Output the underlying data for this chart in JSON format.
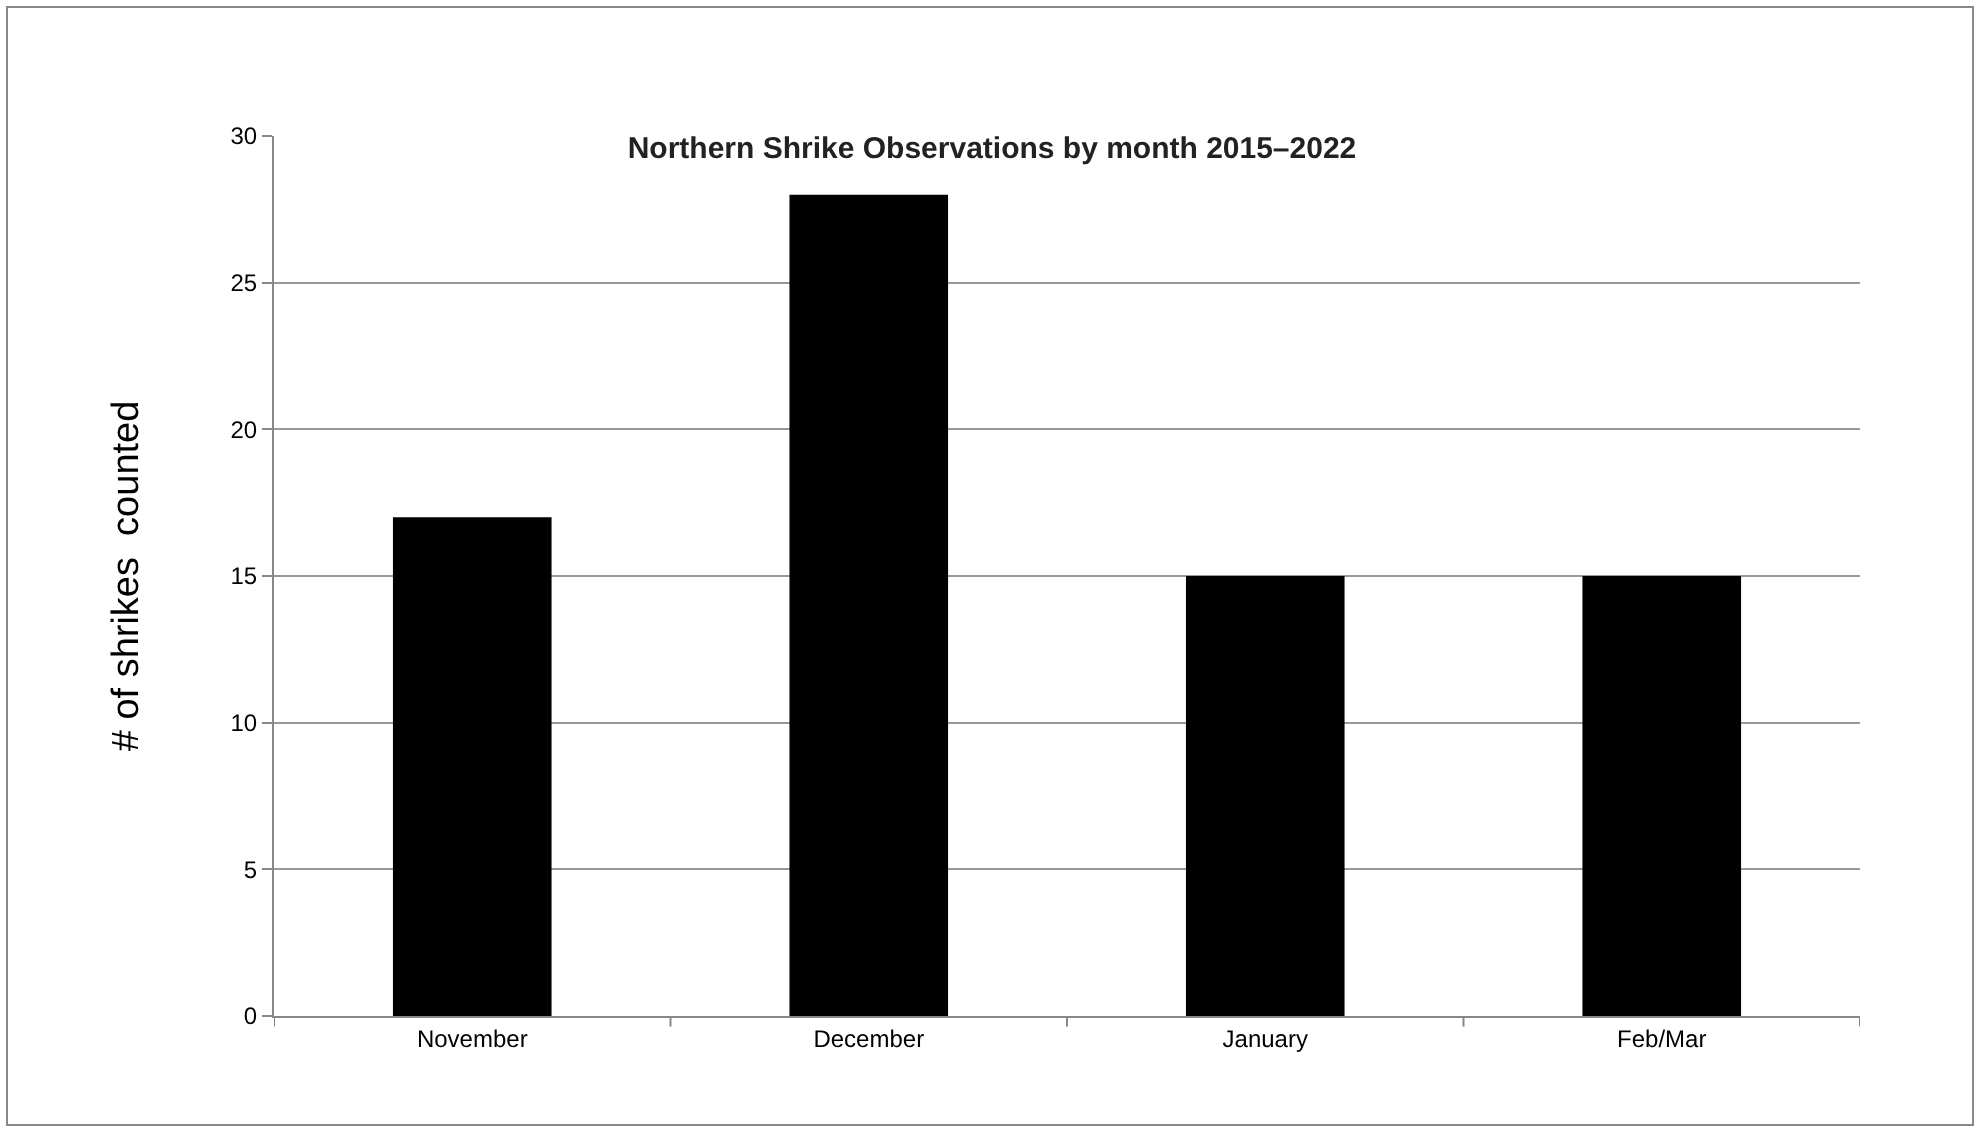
{
  "chart_data": {
    "type": "bar",
    "title": "Northern Shrike Observations by month 2015–2022",
    "ylabel": "# of shrikes  counted",
    "categories": [
      "November",
      "December",
      "January",
      "Feb/Mar"
    ],
    "series": [
      {
        "color": "#000000",
        "values": [
          17,
          28,
          15,
          15
        ]
      }
    ],
    "ylim": [
      0,
      30
    ],
    "yticks": [
      0,
      5,
      10,
      15,
      20,
      25,
      30
    ],
    "grid": "y"
  }
}
